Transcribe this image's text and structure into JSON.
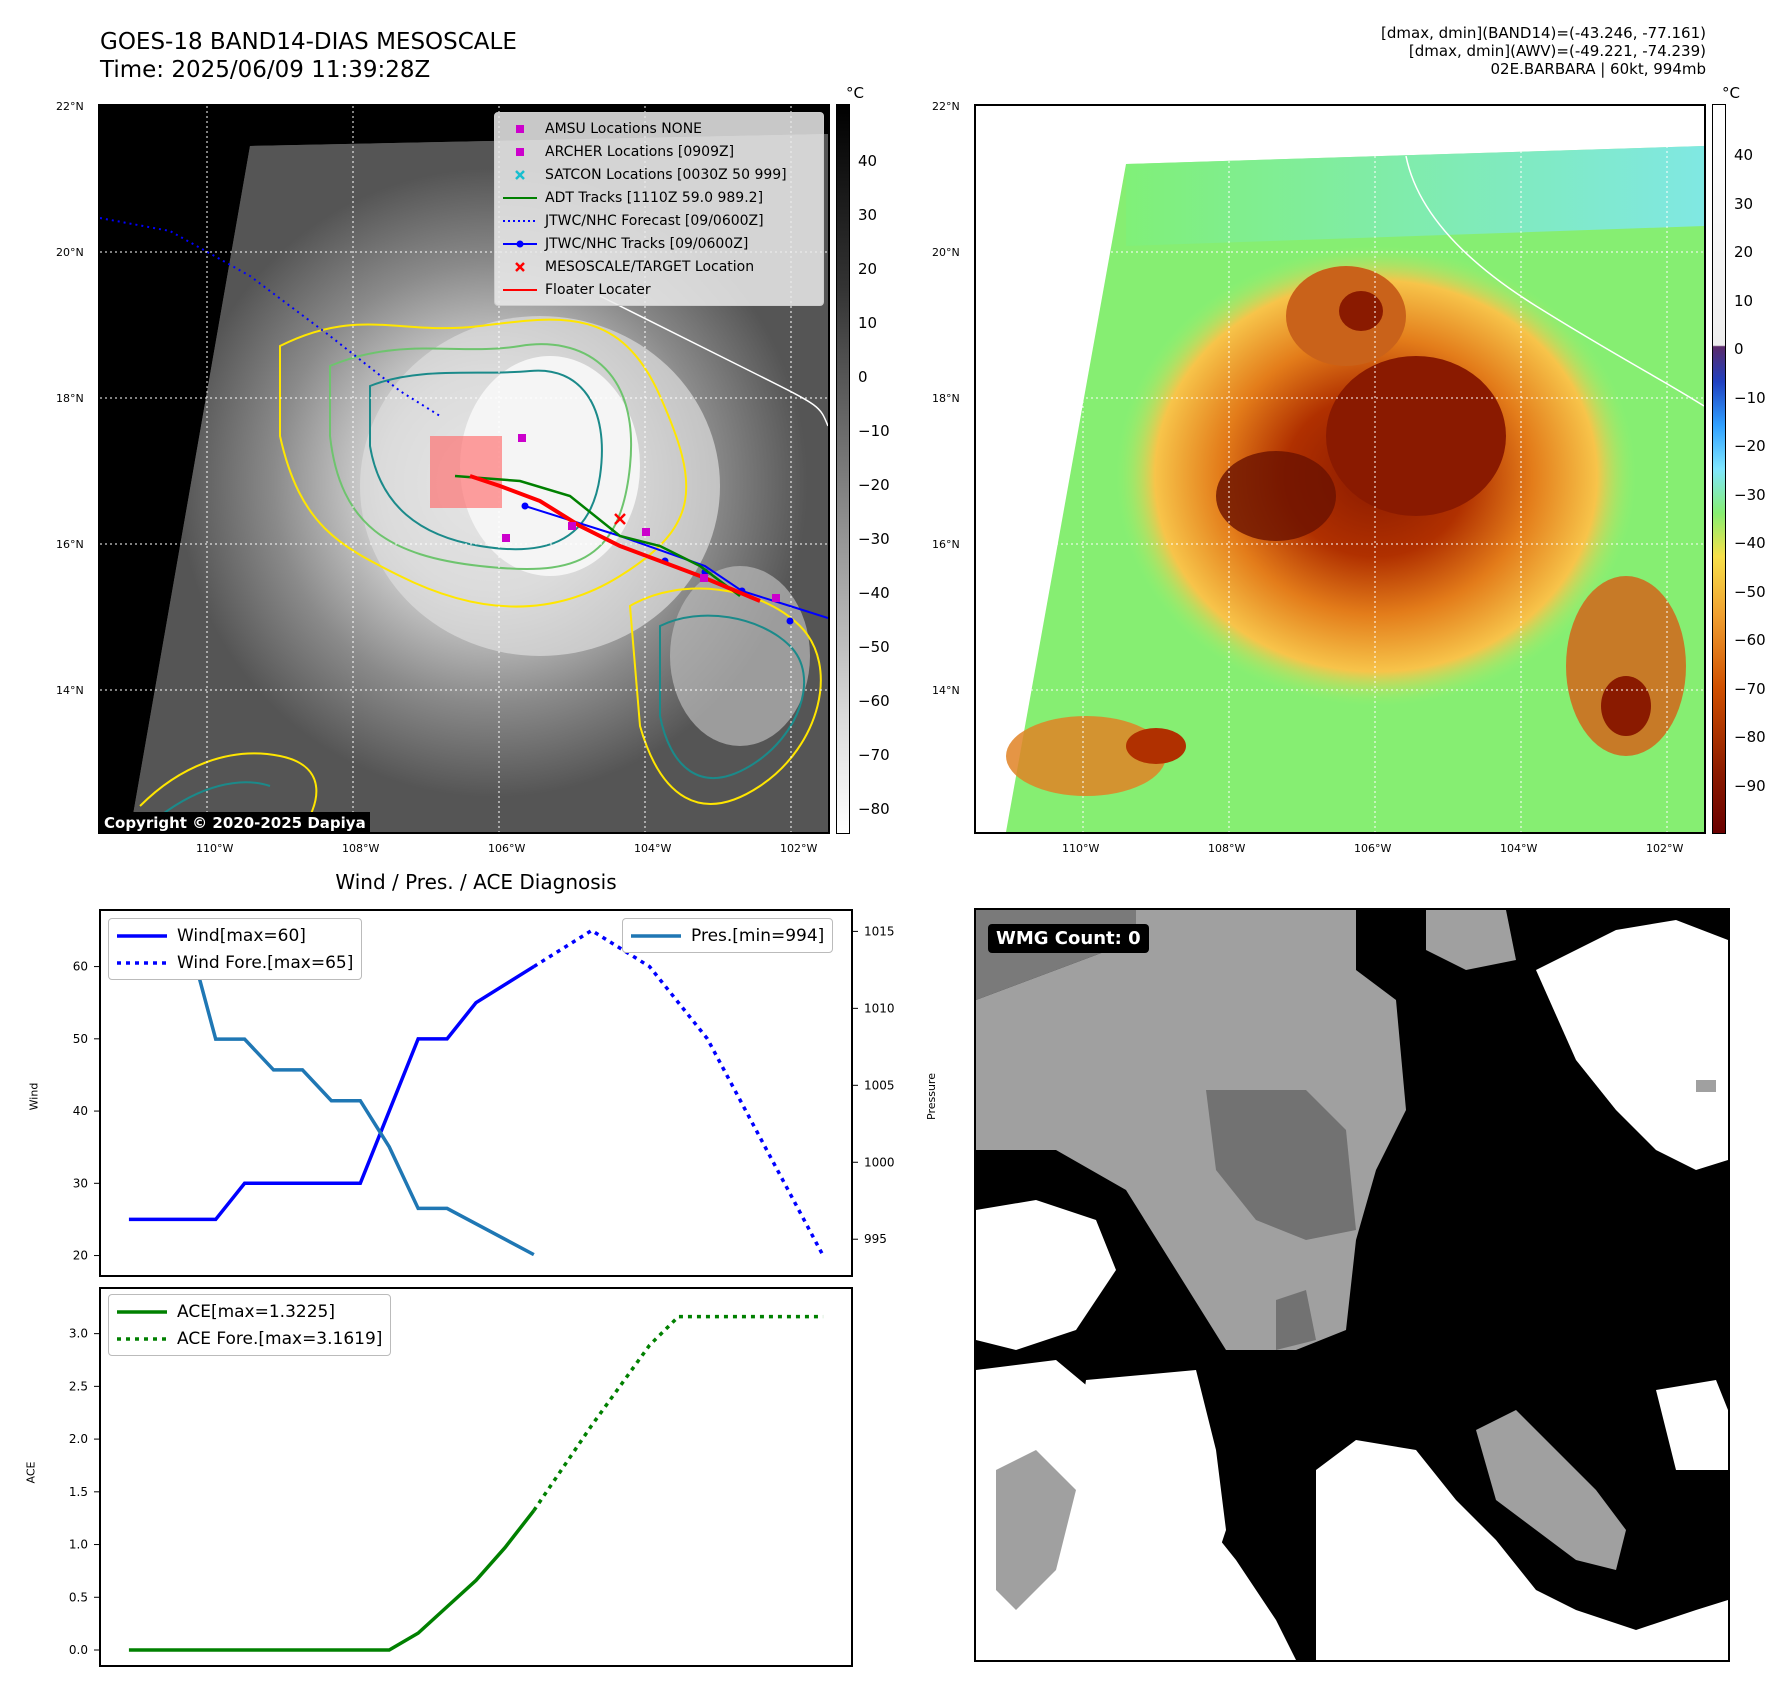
{
  "header": {
    "title_line1": "GOES-18 BAND14-DIAS MESOSCALE",
    "title_line2": "Time: 2025/06/09 11:39:28Z",
    "stats_line1": "[dmax, dmin](BAND14)=(-43.246, -77.161)",
    "stats_line2": "[dmax, dmin](AWV)=(-49.221, -74.239)",
    "stats_line3": "02E.BARBARA | 60kt, 994mb"
  },
  "map": {
    "lat_labels": [
      "22°N",
      "20°N",
      "18°N",
      "16°N",
      "14°N"
    ],
    "lon_labels": [
      "110°W",
      "108°W",
      "106°W",
      "104°W",
      "102°W"
    ],
    "unit": "°C",
    "colorbar_ticks_gray": [
      "40",
      "30",
      "20",
      "10",
      "0",
      "−10",
      "−20",
      "−30",
      "−40",
      "−50",
      "−60",
      "−70",
      "−80"
    ],
    "colorbar_ticks_color": [
      "40",
      "30",
      "20",
      "10",
      "0",
      "−10",
      "−20",
      "−30",
      "−40",
      "−50",
      "−60",
      "−70",
      "−80",
      "−90"
    ],
    "copyright": "Copyright © 2020-2025 Dapiya",
    "legend": [
      {
        "label": "AMSU Locations NONE",
        "symbol": "square",
        "color": "#cc00cc"
      },
      {
        "label": "ARCHER Locations [0909Z]",
        "symbol": "square",
        "color": "#cc00cc"
      },
      {
        "label": "SATCON Locations [0030Z 50 999]",
        "symbol": "x",
        "color": "#17becf"
      },
      {
        "label": "ADT Tracks [1110Z 59.0 989.2]",
        "symbol": "line",
        "color": "#008000"
      },
      {
        "label": "JTWC/NHC Forecast [09/0600Z]",
        "symbol": "dotted",
        "color": "#0000ff"
      },
      {
        "label": "JTWC/NHC Tracks [09/0600Z]",
        "symbol": "line-dot",
        "color": "#0000ff"
      },
      {
        "label": "MESOSCALE/TARGET Location",
        "symbol": "x",
        "color": "#ff0000"
      },
      {
        "label": "Floater Locater",
        "symbol": "line",
        "color": "#ff0000"
      }
    ]
  },
  "chart_data": {
    "type": "line",
    "title": "Wind / Pres. / ACE Diagnosis",
    "wind_panel": {
      "ylabel": "Wind",
      "ylabel_right": "Pressure",
      "yticks": [
        20,
        30,
        40,
        50,
        60
      ],
      "yticks_right": [
        995,
        1000,
        1005,
        1010,
        1015
      ],
      "series": [
        {
          "name": "Wind[max=60]",
          "color": "#0000ff",
          "style": "solid",
          "axis": "left",
          "x": [
            0,
            3,
            4,
            5,
            6,
            7,
            8,
            9,
            10,
            11,
            12,
            14
          ],
          "values": [
            25,
            25,
            30,
            30,
            30,
            30,
            30,
            40,
            50,
            50,
            55,
            60
          ]
        },
        {
          "name": "Wind Fore.[max=65]",
          "color": "#0000ff",
          "style": "dotted",
          "axis": "left",
          "x": [
            14,
            16,
            18,
            20,
            22,
            24
          ],
          "values": [
            60,
            65,
            60,
            50,
            35,
            20
          ]
        },
        {
          "name": "Pres.[min=994]",
          "color": "#1f77b4",
          "style": "solid",
          "axis": "right",
          "x": [
            0,
            2,
            3,
            4,
            5,
            6,
            7,
            8,
            9,
            10,
            11,
            14
          ],
          "values": [
            1015,
            1015,
            1008,
            1008,
            1006,
            1006,
            1004,
            1004,
            1001,
            997,
            997,
            994
          ]
        }
      ]
    },
    "ace_panel": {
      "ylabel": "ACE",
      "yticks": [
        "0.0",
        "0.5",
        "1.0",
        "1.5",
        "2.0",
        "2.5",
        "3.0"
      ],
      "series": [
        {
          "name": "ACE[max=1.3225]",
          "color": "#008000",
          "style": "solid",
          "x": [
            0,
            9,
            10,
            11,
            12,
            13,
            14
          ],
          "values": [
            0,
            0,
            0.16,
            0.41,
            0.66,
            0.97,
            1.3225
          ]
        },
        {
          "name": "ACE Fore.[max=3.1619]",
          "color": "#008000",
          "style": "dotted",
          "x": [
            14,
            16,
            18,
            19,
            20,
            22,
            24
          ],
          "values": [
            1.3225,
            2.13,
            2.89,
            3.1619,
            3.1619,
            3.1619,
            3.1619
          ]
        }
      ]
    }
  },
  "wmg": {
    "label": "WMG Count: 0"
  }
}
